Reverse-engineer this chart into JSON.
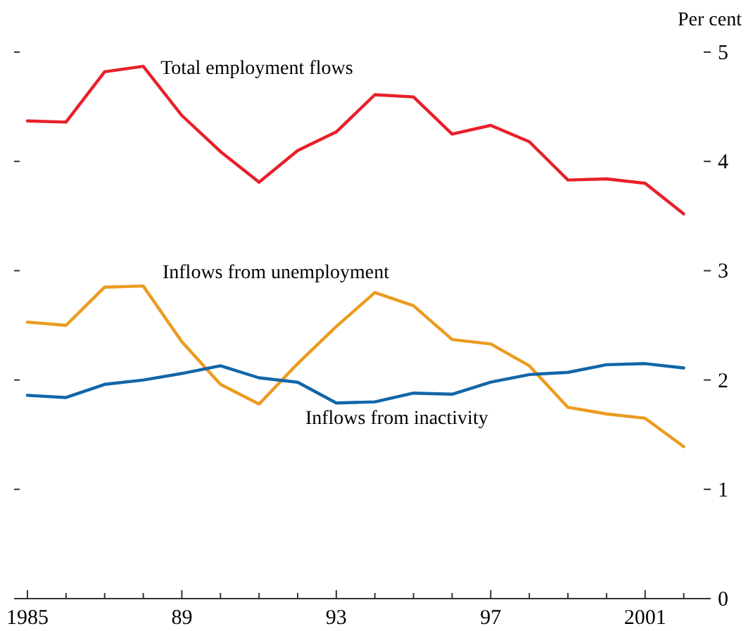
{
  "chart_data": {
    "type": "line",
    "ylabel": "Per cent",
    "xlim": [
      1984.8,
      2002.7
    ],
    "ylim": [
      0,
      5
    ],
    "yticks": [
      0,
      1,
      2,
      3,
      4,
      5
    ],
    "xticks": [
      {
        "value": 1985,
        "label": "1985"
      },
      {
        "value": 1986,
        "label": null
      },
      {
        "value": 1987,
        "label": null
      },
      {
        "value": 1988,
        "label": null
      },
      {
        "value": 1989,
        "label": "89"
      },
      {
        "value": 1990,
        "label": null
      },
      {
        "value": 1991,
        "label": null
      },
      {
        "value": 1992,
        "label": null
      },
      {
        "value": 1993,
        "label": "93"
      },
      {
        "value": 1994,
        "label": null
      },
      {
        "value": 1995,
        "label": null
      },
      {
        "value": 1996,
        "label": null
      },
      {
        "value": 1997,
        "label": "97"
      },
      {
        "value": 1998,
        "label": null
      },
      {
        "value": 1999,
        "label": null
      },
      {
        "value": 2000,
        "label": null
      },
      {
        "value": 2001,
        "label": "2001"
      },
      {
        "value": 2002,
        "label": null
      }
    ],
    "x": [
      1985,
      1986,
      1987,
      1988,
      1989,
      1990,
      1991,
      1992,
      1993,
      1994,
      1995,
      1996,
      1997,
      1998,
      1999,
      2000,
      2001,
      2002
    ],
    "grid": false,
    "marker": "none",
    "line_style": "solid",
    "series": [
      {
        "name": "Total employment flows",
        "color": "#e8202a",
        "values": [
          4.37,
          4.36,
          4.82,
          4.87,
          4.42,
          4.09,
          3.81,
          4.1,
          4.27,
          4.61,
          4.59,
          4.25,
          4.33,
          4.18,
          3.83,
          3.84,
          3.8,
          3.52
        ]
      },
      {
        "name": "Inflows from unemployment",
        "color": "#eb9b1f",
        "values": [
          2.53,
          2.5,
          2.85,
          2.86,
          2.35,
          1.96,
          1.78,
          2.15,
          2.49,
          2.8,
          2.68,
          2.37,
          2.33,
          2.13,
          1.75,
          1.69,
          1.65,
          1.39
        ]
      },
      {
        "name": "Inflows from inactivity",
        "color": "#1266a6",
        "values": [
          1.86,
          1.84,
          1.96,
          2.0,
          2.06,
          2.13,
          2.02,
          1.98,
          1.79,
          1.8,
          1.88,
          1.87,
          1.98,
          2.05,
          2.07,
          2.14,
          2.15,
          2.11
        ]
      }
    ]
  }
}
